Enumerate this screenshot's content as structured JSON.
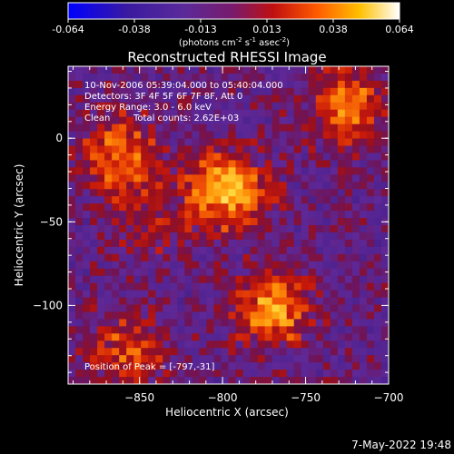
{
  "colorbar": {
    "ticks": [
      "-0.064",
      "-0.038",
      "-0.013",
      "0.013",
      "0.038",
      "0.064"
    ],
    "unit_label": "(photons cm",
    "unit_exp1": "-2",
    "unit_mid1": " s",
    "unit_exp2": "-1",
    "unit_mid2": " asec",
    "unit_exp3": "-2",
    "unit_close": ")",
    "range": [
      -0.064,
      0.064
    ]
  },
  "annotations": {
    "time_range": "10-Nov-2006 05:39:04.000 to 05:40:04.000",
    "detectors": "Detectors: 3F 4F 5F 6F 7F 8F, Att 0",
    "energy_range": "Energy Range: 3.0 - 6.0 keV",
    "clean_label": "Clean",
    "total_counts": "Total counts: 2.62E+03",
    "peak_position": "Position of Peak = [-797,-31]"
  },
  "footer_timestamp": "7-May-2022 19:48",
  "colors": {
    "background": "#000000",
    "axis": "#ffffff",
    "low": "#5a2a9a",
    "high": "#fffbe0"
  },
  "chart_data": {
    "type": "heatmap",
    "title": "Reconstructed RHESSI Image",
    "xlabel": "Heliocentric X (arcsec)",
    "ylabel": "Heliocentric Y (arcsec)",
    "xlim": [
      -893,
      -700
    ],
    "ylim": [
      -147,
      43
    ],
    "x_ticks": [
      -850,
      -800,
      -750,
      -700
    ],
    "x_tick_labels": [
      "−850",
      "−800",
      "−750",
      "−700"
    ],
    "y_ticks": [
      0,
      -50,
      -100
    ],
    "y_tick_labels": [
      "0",
      "−50",
      "−100"
    ],
    "sources": [
      {
        "x": -797,
        "y": -31,
        "peak": 0.064
      },
      {
        "x": -862,
        "y": -10,
        "peak": 0.045
      },
      {
        "x": -725,
        "y": 20,
        "peak": 0.048
      },
      {
        "x": -770,
        "y": -103,
        "peak": 0.052
      },
      {
        "x": -857,
        "y": -128,
        "peak": 0.038
      },
      {
        "x": -842,
        "y": -52,
        "peak": 0.022
      }
    ]
  }
}
